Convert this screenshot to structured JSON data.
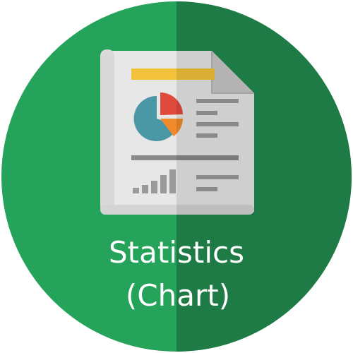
{
  "icon": {
    "name": "statistics-chart-icon",
    "label_line1": "Statistics",
    "label_line2": "(Chart)",
    "colors": {
      "circle_light": "#25a35a",
      "circle_dark": "#1e7b45",
      "paper": "#e7e7e7",
      "paper_shade": "#c8c8c8",
      "header_bar": "#f2c23a",
      "pie_main": "#4a98a6",
      "pie_red": "#e04a3c",
      "pie_orange": "#f08a2a",
      "text_lines": "#9a9a9a",
      "label_text": "#ffffff"
    }
  }
}
